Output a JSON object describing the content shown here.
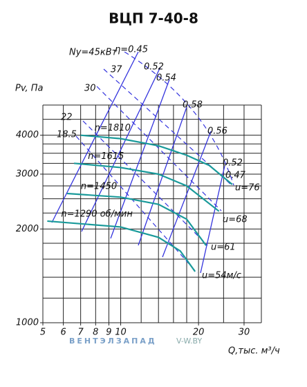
{
  "chart_data": {
    "type": "line",
    "title": "ВЦП 7-40-8",
    "y_label": "Pv, Па",
    "x_label": "Q,тыс. м³/ч",
    "xscale": "log",
    "yscale": "log",
    "xlim": [
      5,
      35
    ],
    "ylim": [
      1000,
      5000
    ],
    "xticks": [
      5,
      6,
      7,
      8,
      9,
      10,
      20,
      30
    ],
    "yticks": [
      1000,
      2000,
      3000,
      4000
    ],
    "x_grid": [
      5,
      6,
      7,
      8,
      9,
      10,
      12,
      14,
      16,
      18,
      20,
      25,
      30,
      35
    ],
    "y_grid": [
      1000,
      1200,
      1400,
      1600,
      1800,
      2000,
      2250,
      2500,
      2750,
      3000,
      3250,
      3500,
      3750,
      4000,
      4500,
      5000
    ],
    "grid": true,
    "series": [
      {
        "name": "n=1810",
        "color": "#1a9a9a",
        "x": [
          7,
          10,
          14,
          18,
          22,
          27
        ],
        "values": [
          4000,
          3900,
          3700,
          3450,
          3200,
          2780
        ]
      },
      {
        "name": "n=1615",
        "color": "#1a9a9a",
        "x": [
          6.6,
          10,
          14,
          18,
          24
        ],
        "values": [
          3250,
          3150,
          3000,
          2750,
          2280
        ]
      },
      {
        "name": "n=1450",
        "color": "#1a9a9a",
        "x": [
          6.2,
          10,
          14,
          18,
          21.4
        ],
        "values": [
          2600,
          2530,
          2400,
          2150,
          1770
        ]
      },
      {
        "name": "n=1290 об/мин",
        "color": "#1a9a9a",
        "x": [
          5.2,
          10,
          14,
          17,
          19.4
        ],
        "values": [
          2120,
          2030,
          1880,
          1700,
          1460
        ]
      }
    ],
    "annotations": [
      "Ny=45кВт",
      "η=0.45",
      "37",
      "0.52",
      "0.54",
      "30",
      "0.58",
      "22",
      "0.56",
      "18.5",
      "0.52",
      "0.47",
      "u=76",
      "u=68",
      "u=61",
      "u=54м/с"
    ],
    "watermark": [
      "ВЕНТЭЛЗАПАД",
      "V-W.BY"
    ]
  }
}
